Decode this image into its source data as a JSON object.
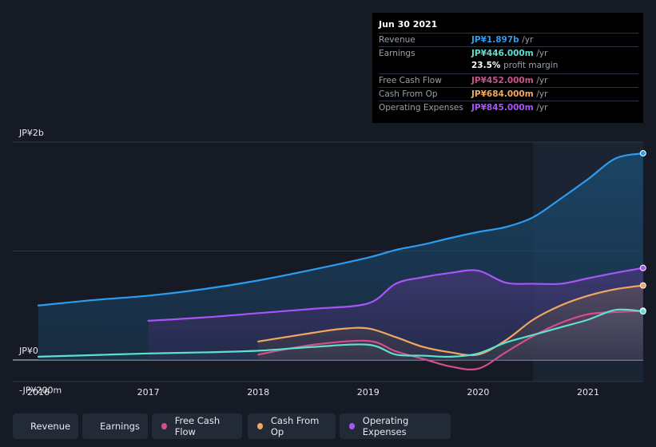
{
  "tooltip": {
    "date": "Jun 30 2021",
    "rows": [
      {
        "label": "Revenue",
        "value": "JP¥1.897b",
        "unit": "/yr",
        "color": "#2d9cf0"
      },
      {
        "label": "Earnings",
        "value": "JP¥446.000m",
        "unit": "/yr",
        "color": "#5ee0cf"
      },
      {
        "label": "",
        "value": "23.5%",
        "unit": "profit margin",
        "color": "#ffffff"
      },
      {
        "label": "Free Cash Flow",
        "value": "JP¥452.000m",
        "unit": "/yr",
        "color": "#d0508a"
      },
      {
        "label": "Cash From Op",
        "value": "JP¥684.000m",
        "unit": "/yr",
        "color": "#f0a860"
      },
      {
        "label": "Operating Expenses",
        "value": "JP¥845.000m",
        "unit": "/yr",
        "color": "#a855f7"
      }
    ]
  },
  "chart_data": {
    "type": "area",
    "x_unit": "year",
    "y_unit": "JP¥ millions",
    "ylim": [
      -200,
      2000
    ],
    "xlim": [
      2015.9,
      2021.5
    ],
    "y_tick_labels": [
      {
        "value": 2000,
        "label": "JP¥2b"
      },
      {
        "value": 0,
        "label": "JP¥0"
      },
      {
        "value": -200,
        "label": "-JP¥200m"
      }
    ],
    "x_tick_labels": [
      {
        "value": 2016,
        "label": "2016"
      },
      {
        "value": 2017,
        "label": "2017"
      },
      {
        "value": 2018,
        "label": "2018"
      },
      {
        "value": 2019,
        "label": "2019"
      },
      {
        "value": 2020,
        "label": "2020"
      },
      {
        "value": 2021,
        "label": "2021"
      }
    ],
    "highlight_start": 2020.5,
    "series": [
      {
        "name": "Revenue",
        "color": "#2d9cf0",
        "x": [
          2016.0,
          2016.5,
          2017.0,
          2017.5,
          2018.0,
          2018.5,
          2019.0,
          2019.25,
          2019.5,
          2019.75,
          2020.0,
          2020.25,
          2020.5,
          2020.75,
          2021.0,
          2021.25,
          2021.5
        ],
        "y": [
          500,
          550,
          590,
          650,
          730,
          830,
          940,
          1010,
          1060,
          1120,
          1175,
          1220,
          1310,
          1480,
          1660,
          1850,
          1897
        ]
      },
      {
        "name": "Operating Expenses",
        "color": "#a855f7",
        "x": [
          2017.0,
          2017.5,
          2018.0,
          2018.5,
          2019.0,
          2019.25,
          2019.5,
          2019.75,
          2020.0,
          2020.25,
          2020.5,
          2020.75,
          2021.0,
          2021.25,
          2021.5
        ],
        "y": [
          360,
          390,
          430,
          470,
          520,
          700,
          760,
          800,
          820,
          710,
          700,
          700,
          750,
          800,
          845
        ]
      },
      {
        "name": "Cash From Op",
        "color": "#f0a860",
        "x": [
          2018.0,
          2018.5,
          2018.75,
          2019.0,
          2019.25,
          2019.5,
          2019.75,
          2020.0,
          2020.25,
          2020.5,
          2020.75,
          2021.0,
          2021.25,
          2021.5
        ],
        "y": [
          170,
          250,
          285,
          290,
          210,
          120,
          70,
          50,
          180,
          370,
          500,
          590,
          650,
          684
        ]
      },
      {
        "name": "Free Cash Flow",
        "color": "#d0508a",
        "x": [
          2018.0,
          2018.5,
          2019.0,
          2019.25,
          2019.5,
          2019.75,
          2020.0,
          2020.25,
          2020.5,
          2020.75,
          2021.0,
          2021.25,
          2021.5
        ],
        "y": [
          50,
          140,
          175,
          80,
          10,
          -60,
          -80,
          70,
          220,
          340,
          420,
          440,
          452
        ]
      },
      {
        "name": "Earnings",
        "color": "#5ee0cf",
        "x": [
          2016.0,
          2016.5,
          2017.0,
          2017.5,
          2018.0,
          2018.5,
          2019.0,
          2019.25,
          2019.5,
          2019.75,
          2020.0,
          2020.25,
          2020.5,
          2020.75,
          2021.0,
          2021.25,
          2021.5
        ],
        "y": [
          30,
          45,
          60,
          70,
          85,
          120,
          140,
          50,
          40,
          30,
          60,
          160,
          230,
          300,
          370,
          460,
          446
        ]
      }
    ]
  },
  "legend": [
    {
      "label": "Revenue",
      "color": "#2d9cf0"
    },
    {
      "label": "Earnings",
      "color": "#5ee0cf"
    },
    {
      "label": "Free Cash Flow",
      "color": "#d0508a"
    },
    {
      "label": "Cash From Op",
      "color": "#f0a860"
    },
    {
      "label": "Operating Expenses",
      "color": "#a855f7"
    }
  ]
}
